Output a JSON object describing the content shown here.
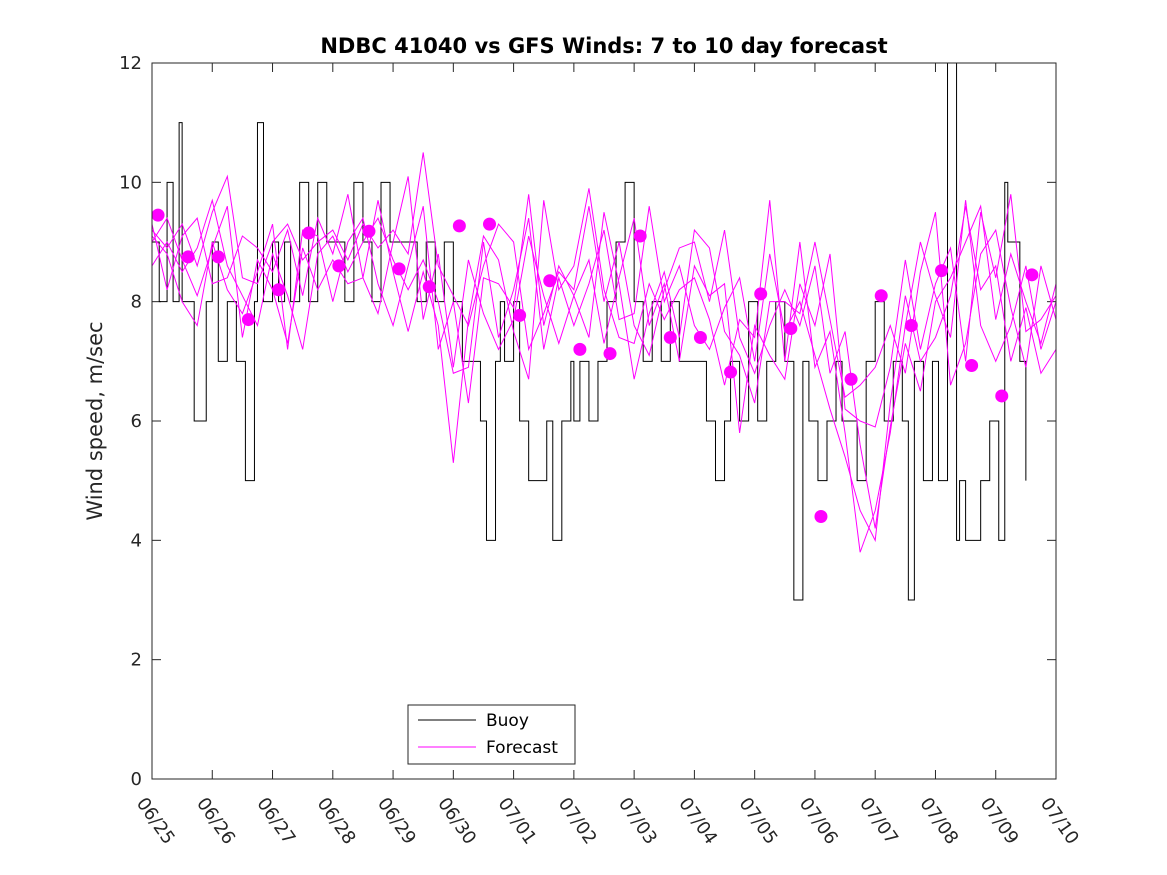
{
  "chart_data": {
    "type": "line",
    "title": "NDBC 41040 vs GFS Winds: 7 to 10 day forecast",
    "xlabel": "",
    "ylabel": "Wind speed, m/sec",
    "x_tick_labels": [
      "06/25",
      "06/26",
      "06/27",
      "06/28",
      "06/29",
      "06/30",
      "07/01",
      "07/02",
      "07/03",
      "07/04",
      "07/05",
      "07/06",
      "07/07",
      "07/08",
      "07/09",
      "07/10"
    ],
    "y_ticks": [
      0,
      2,
      4,
      6,
      8,
      10,
      12
    ],
    "xlim_days": [
      0,
      15
    ],
    "ylim": [
      0,
      12
    ],
    "grid": false,
    "legend": {
      "placement": "bottom-center",
      "entries": [
        "Buoy",
        "Forecast"
      ]
    },
    "colors": {
      "buoy": "#000000",
      "forecast": "#ff00ff",
      "axes": "#262626"
    },
    "series": [
      {
        "name": "Buoy",
        "style": "line",
        "x_days": [
          0.0,
          0.12,
          0.25,
          0.35,
          0.45,
          0.5,
          0.55,
          0.7,
          0.8,
          0.9,
          1.0,
          1.1,
          1.25,
          1.4,
          1.55,
          1.7,
          1.75,
          1.85,
          2.0,
          2.1,
          2.2,
          2.3,
          2.45,
          2.6,
          2.75,
          2.9,
          3.05,
          3.2,
          3.35,
          3.5,
          3.65,
          3.8,
          3.95,
          4.1,
          4.25,
          4.4,
          4.55,
          4.7,
          4.85,
          5.0,
          5.15,
          5.3,
          5.45,
          5.55,
          5.7,
          5.78,
          5.85,
          6.0,
          6.1,
          6.25,
          6.4,
          6.55,
          6.65,
          6.8,
          6.95,
          7.0,
          7.1,
          7.25,
          7.4,
          7.55,
          7.7,
          7.85,
          8.0,
          8.15,
          8.3,
          8.45,
          8.6,
          8.75,
          8.9,
          9.05,
          9.2,
          9.35,
          9.5,
          9.6,
          9.75,
          9.9,
          10.05,
          10.2,
          10.35,
          10.5,
          10.65,
          10.8,
          10.9,
          11.05,
          11.2,
          11.35,
          11.45,
          11.55,
          11.7,
          11.85,
          12.0,
          12.15,
          12.3,
          12.45,
          12.55,
          12.65,
          12.8,
          12.95,
          13.05,
          13.2,
          13.35,
          13.4,
          13.5,
          13.6,
          13.75,
          13.9,
          14.05,
          14.15,
          14.2,
          14.4,
          14.5
        ],
        "values": [
          9,
          8,
          10,
          8,
          11,
          8,
          8,
          6,
          6,
          8,
          9,
          7,
          8,
          7,
          5,
          8,
          11,
          8,
          9,
          8,
          9,
          8,
          10,
          8,
          10,
          9,
          9,
          8,
          10,
          9,
          8,
          10,
          9,
          9,
          9,
          8,
          9,
          8,
          9,
          8,
          7,
          7,
          6,
          4,
          7,
          8,
          7,
          8,
          6,
          5,
          5,
          6,
          4,
          6,
          7,
          6,
          7,
          6,
          7,
          8,
          9,
          10,
          8,
          7,
          8,
          7,
          8,
          7,
          7,
          7,
          6,
          5,
          6,
          7,
          6,
          8,
          6,
          7,
          8,
          7,
          3,
          7,
          6,
          5,
          6,
          7,
          6,
          6,
          5,
          7,
          8,
          6,
          7,
          6,
          3,
          7,
          5,
          7,
          5,
          12,
          4,
          5,
          4,
          4,
          5,
          6,
          4,
          10,
          9,
          7,
          5
        ]
      },
      {
        "name": "Forecast",
        "style": "line",
        "x_days": [
          0.0,
          0.25,
          0.5,
          0.75,
          1.0,
          1.25,
          1.5,
          1.75,
          2.0,
          2.25,
          2.5,
          2.75,
          3.0,
          3.25,
          3.5,
          3.75,
          4.0,
          4.25,
          4.5,
          4.75,
          5.0,
          5.25,
          5.5,
          5.75,
          6.0,
          6.25,
          6.5,
          6.75,
          7.0,
          7.25,
          7.5,
          7.75,
          8.0,
          8.25,
          8.5,
          8.75,
          9.0,
          9.25,
          9.5,
          9.75,
          10.0,
          10.25,
          10.5,
          10.75,
          11.0,
          11.25,
          11.5,
          11.75,
          12.0,
          12.25,
          12.5,
          12.75,
          13.0,
          13.25,
          13.5,
          13.75,
          14.0,
          14.25,
          14.5,
          14.75,
          15.0
        ],
        "values": [
          9.2,
          8.9,
          9.3,
          8.6,
          9.5,
          10.1,
          8.4,
          8.3,
          9.0,
          9.3,
          8.7,
          9.0,
          9.2,
          8.7,
          9.3,
          8.9,
          9.2,
          8.8,
          10.5,
          8.6,
          8.1,
          7.6,
          8.6,
          9.3,
          9.0,
          7.2,
          7.8,
          8.5,
          8.2,
          9.6,
          8.0,
          9.0,
          7.6,
          7.1,
          8.2,
          8.9,
          9.0,
          8.0,
          9.2,
          7.4,
          6.8,
          7.6,
          8.2,
          7.6,
          8.6,
          6.8,
          7.5,
          5.6,
          4.2,
          5.9,
          7.3,
          6.5,
          8.0,
          8.4,
          9.0,
          9.6,
          7.7,
          8.8,
          8.0,
          7.3,
          8.3
        ]
      },
      {
        "name": "Forecast",
        "style": "line",
        "x_days": [
          0.0,
          0.25,
          0.5,
          0.75,
          1.0,
          1.25,
          1.5,
          1.75,
          2.0,
          2.25,
          2.5,
          2.75,
          3.0,
          3.25,
          3.5,
          3.75,
          4.0,
          4.25,
          4.5,
          4.75,
          5.0,
          5.25,
          5.5,
          5.75,
          6.0,
          6.25,
          6.5,
          6.75,
          7.0,
          7.25,
          7.5,
          7.75,
          8.0,
          8.25,
          8.5,
          8.75,
          9.0,
          9.25,
          9.5,
          9.75,
          10.0,
          10.25,
          10.5,
          10.75,
          11.0,
          11.25,
          11.5,
          11.75,
          12.0,
          12.25,
          12.5,
          12.75,
          13.0,
          13.25,
          13.5,
          13.75,
          14.0,
          14.25,
          14.5,
          14.75,
          15.0
        ],
        "values": [
          8.6,
          9.0,
          8.5,
          8.9,
          9.7,
          8.6,
          8.1,
          7.6,
          8.8,
          8.1,
          7.2,
          8.8,
          9.1,
          8.5,
          9.0,
          9.4,
          8.7,
          8.2,
          8.7,
          8.0,
          6.8,
          6.9,
          9.0,
          7.4,
          8.2,
          9.4,
          7.2,
          8.4,
          7.6,
          8.3,
          9.2,
          7.7,
          7.8,
          9.6,
          8.0,
          8.6,
          7.6,
          7.2,
          7.9,
          8.4,
          7.0,
          8.8,
          7.5,
          8.0,
          7.1,
          6.2,
          5.4,
          4.5,
          4.0,
          6.3,
          8.1,
          7.0,
          7.4,
          8.1,
          9.6,
          8.2,
          8.6,
          7.0,
          7.9,
          6.8,
          7.2
        ]
      },
      {
        "name": "Forecast",
        "style": "line",
        "x_days": [
          0.0,
          0.25,
          0.5,
          0.75,
          1.0,
          1.25,
          1.5,
          1.75,
          2.0,
          2.25,
          2.5,
          2.75,
          3.0,
          3.25,
          3.5,
          3.75,
          4.0,
          4.25,
          4.5,
          4.75,
          5.0,
          5.25,
          5.5,
          5.75,
          6.0,
          6.25,
          6.5,
          6.75,
          7.0,
          7.25,
          7.5,
          7.75,
          8.0,
          8.25,
          8.5,
          8.75,
          9.0,
          9.25,
          9.5,
          9.75,
          10.0,
          10.25,
          10.5,
          10.75,
          11.0,
          11.25,
          11.5,
          11.75,
          12.0,
          12.25,
          12.5,
          12.75,
          13.0,
          13.25,
          13.5,
          13.75,
          14.0,
          14.25,
          14.5,
          14.75,
          15.0
        ],
        "values": [
          9.0,
          9.4,
          8.7,
          8.1,
          8.9,
          9.6,
          7.4,
          8.7,
          8.2,
          7.3,
          8.9,
          8.2,
          8.7,
          8.3,
          8.4,
          9.7,
          8.5,
          7.5,
          8.5,
          7.6,
          5.3,
          7.7,
          9.1,
          8.7,
          7.5,
          6.7,
          9.7,
          8.2,
          8.6,
          9.9,
          8.2,
          7.4,
          7.3,
          8.3,
          7.7,
          8.2,
          8.4,
          7.7,
          6.6,
          7.7,
          7.4,
          9.7,
          7.0,
          9.0,
          6.9,
          7.5,
          5.8,
          3.8,
          4.5,
          5.8,
          7.6,
          9.0,
          8.1,
          7.4,
          9.7,
          7.6,
          7.0,
          7.6,
          8.6,
          7.2,
          8.0
        ]
      },
      {
        "name": "Forecast",
        "style": "line",
        "x_days": [
          0.0,
          0.25,
          0.5,
          0.75,
          1.0,
          1.25,
          1.5,
          1.75,
          2.0,
          2.25,
          2.5,
          2.75,
          3.0,
          3.25,
          3.5,
          3.75,
          4.0,
          4.25,
          4.5,
          4.75,
          5.0,
          5.25,
          5.5,
          5.75,
          6.0,
          6.25,
          6.5,
          6.75,
          7.0,
          7.25,
          7.5,
          7.75,
          8.0,
          8.25,
          8.5,
          8.75,
          9.0,
          9.25,
          9.5,
          9.75,
          10.0,
          10.25,
          10.5,
          10.75,
          11.0,
          11.25,
          11.5,
          11.75,
          12.0,
          12.25,
          12.5,
          12.75,
          13.0,
          13.25,
          13.5,
          13.75,
          14.0,
          14.25,
          14.5,
          14.75,
          15.0
        ],
        "values": [
          9.3,
          8.2,
          9.1,
          9.4,
          8.3,
          8.4,
          9.1,
          8.9,
          8.5,
          9.2,
          8.1,
          9.4,
          8.8,
          9.8,
          8.4,
          7.8,
          9.0,
          10.1,
          7.7,
          8.8,
          6.9,
          8.7,
          7.8,
          7.2,
          7.7,
          9.1,
          8.1,
          7.3,
          8.1,
          8.7,
          7.3,
          8.4,
          9.4,
          7.6,
          8.3,
          7.0,
          8.6,
          8.1,
          8.3,
          5.8,
          7.6,
          7.1,
          6.7,
          8.3,
          7.6,
          8.8,
          6.2,
          6.0,
          5.9,
          6.9,
          8.7,
          7.2,
          8.3,
          8.9,
          7.0,
          9.5,
          8.4,
          9.8,
          7.5,
          7.7,
          8.1
        ]
      },
      {
        "name": "Forecast",
        "style": "line",
        "x_days": [
          0.0,
          0.25,
          0.5,
          0.75,
          1.0,
          1.25,
          1.5,
          1.75,
          2.0,
          2.25,
          2.5,
          2.75,
          3.0,
          3.25,
          3.5,
          3.75,
          4.0,
          4.25,
          4.5,
          4.75,
          5.0,
          5.25,
          5.5,
          5.75,
          6.0,
          6.25,
          6.5,
          6.75,
          7.0,
          7.25,
          7.5,
          7.75,
          8.0,
          8.25,
          8.5,
          8.75,
          9.0,
          9.25,
          9.5,
          9.75,
          10.0,
          10.25,
          10.5,
          10.75,
          11.0,
          11.25,
          11.5,
          11.75,
          12.0,
          12.25,
          12.5,
          12.75,
          13.0,
          13.25,
          13.5,
          13.75,
          14.0,
          14.25,
          14.5,
          14.75,
          15.0
        ],
        "values": [
          9.1,
          8.8,
          8.0,
          7.6,
          9.0,
          8.2,
          7.8,
          8.5,
          9.3,
          7.2,
          9.2,
          9.1,
          8.0,
          9.0,
          9.4,
          8.3,
          7.6,
          8.6,
          9.6,
          7.2,
          8.0,
          6.3,
          8.4,
          8.3,
          7.9,
          9.8,
          7.6,
          8.6,
          8.1,
          7.4,
          9.5,
          8.3,
          6.7,
          7.8,
          8.5,
          7.4,
          9.2,
          8.9,
          7.5,
          7.1,
          6.3,
          8.0,
          8.0,
          7.8,
          9.0,
          7.7,
          6.4,
          6.6,
          6.9,
          7.6,
          6.8,
          8.5,
          9.5,
          6.6,
          7.3,
          8.8,
          9.2,
          7.9,
          6.9,
          8.6,
          7.7
        ]
      },
      {
        "name": "Forecast",
        "style": "markers",
        "x_days": [
          0.1,
          0.6,
          1.1,
          1.6,
          2.1,
          2.6,
          3.1,
          3.6,
          4.1,
          4.6,
          5.1,
          5.6,
          6.1,
          6.6,
          7.1,
          7.6,
          8.1,
          8.6,
          9.1,
          9.6,
          10.1,
          10.6,
          11.1,
          11.6,
          12.1,
          12.6,
          13.1,
          13.6,
          14.1,
          14.6
        ],
        "values": [
          9.45,
          8.75,
          8.75,
          7.7,
          8.2,
          9.15,
          8.6,
          9.18,
          8.55,
          8.25,
          9.27,
          9.3,
          7.77,
          8.35,
          7.2,
          7.13,
          9.1,
          7.4,
          7.4,
          6.82,
          8.13,
          7.55,
          4.4,
          6.7,
          8.1,
          7.6,
          8.52,
          6.93,
          6.42,
          8.45
        ]
      }
    ]
  }
}
